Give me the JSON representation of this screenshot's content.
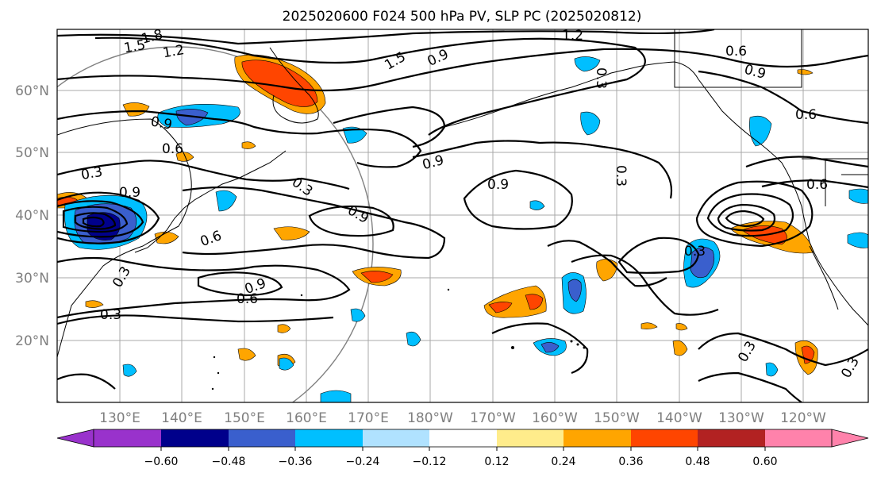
{
  "title": "2025020600 F024 500 hPa PV, SLP PC (2025020812)",
  "map": {
    "lat_labels": [
      "60°N",
      "50°N",
      "40°N",
      "30°N",
      "20°N"
    ],
    "lon_labels": [
      "130°E",
      "140°E",
      "150°E",
      "160°E",
      "170°E",
      "180°W",
      "170°W",
      "160°W",
      "150°W",
      "140°W",
      "130°W",
      "120°W"
    ],
    "contour_labels": [
      "1.8",
      "1.5",
      "1.2",
      "1.2",
      "1.5",
      "0.9",
      "0.6",
      "0.9",
      "0.6",
      "0.9",
      "0.6",
      "0.3",
      "0.9",
      "0.3",
      "0.9",
      "0.9",
      "0.6",
      "0.9",
      "0.6",
      "0.3",
      "0.3",
      "0.9",
      "0.3",
      "0.3",
      "0.6",
      "0.3",
      "0.3",
      "0.3"
    ],
    "grid_color": "#a9a9a9",
    "circle_color": "#808080"
  },
  "colorbar": {
    "colors": [
      "#9932cc",
      "#00008b",
      "#3a5fcd",
      "#00bfff",
      "#b0e2ff",
      "#ffffff",
      "#ffffff",
      "#ffec8b",
      "#ffa500",
      "#ff4500",
      "#b22222",
      "#ff82ab"
    ],
    "tick_labels": [
      "−0.60",
      "−0.48",
      "−0.36",
      "−0.24",
      "−0.12",
      "0.12",
      "0.24",
      "0.36",
      "0.48",
      "0.60"
    ]
  }
}
